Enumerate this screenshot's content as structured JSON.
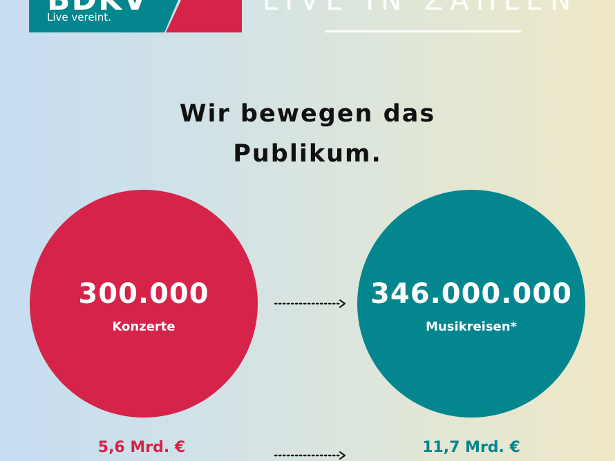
{
  "logo": {
    "name": "BDKV",
    "tagline": "Live vereint.",
    "colors": {
      "teal": "#04868f",
      "red": "#d5234a"
    }
  },
  "header": {
    "title": "LIVE IN ZAHLEN"
  },
  "headline": {
    "line1": "Wir bewegen das",
    "line2": "Publikum."
  },
  "stats": {
    "left": {
      "value": "300.000",
      "label": "Konzerte",
      "revenue": "5,6 Mrd. €",
      "color": "#d5234a"
    },
    "right": {
      "value": "346.000.000",
      "label": "Musikreisen*",
      "revenue": "11,7 Mrd. €",
      "color": "#04868f"
    }
  },
  "icons": [
    "dotted-arrow-right-icon"
  ]
}
